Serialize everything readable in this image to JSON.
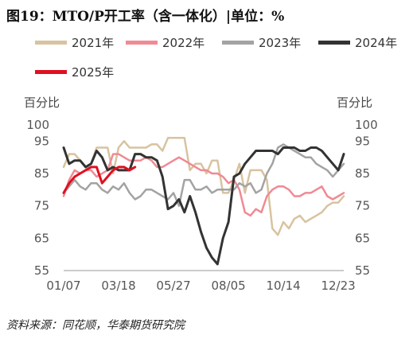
{
  "title": "图19：MTO/P开工率（含一体化）|单位：%",
  "source": "资料来源：同花顺，华泰期货研究院",
  "chart_data": {
    "type": "line",
    "ylabel_left": "百分比",
    "ylabel_right": "百分比",
    "ylim": [
      55,
      100
    ],
    "yticks": [
      55,
      65,
      75,
      85,
      95,
      100
    ],
    "xlim": [
      1,
      52
    ],
    "xticks": [
      {
        "week": 1,
        "label": "01/07"
      },
      {
        "week": 11,
        "label": "03/18"
      },
      {
        "week": 21,
        "label": "05/27"
      },
      {
        "week": 31,
        "label": "08/05"
      },
      {
        "week": 41,
        "label": "10/14"
      },
      {
        "week": 51,
        "label": "12/23"
      }
    ],
    "grid": false,
    "legend_position": "top",
    "series": [
      {
        "name": "2021年",
        "color": "#d8c3a0",
        "width": 2.5,
        "values": [
          87,
          91,
          91,
          89,
          87,
          88,
          93,
          93,
          93,
          85,
          93,
          95,
          93,
          93,
          93,
          93,
          94,
          94,
          92,
          96,
          96,
          96,
          96,
          86,
          88,
          88,
          85,
          89,
          89,
          79,
          79,
          83,
          88,
          79,
          86,
          86,
          86,
          83,
          68,
          66,
          70,
          68,
          71,
          72,
          70,
          71,
          72,
          73,
          75,
          76,
          76,
          78
        ]
      },
      {
        "name": "2022年",
        "color": "#f08a94",
        "width": 2.5,
        "values": [
          78,
          83,
          86,
          85,
          86,
          86,
          84,
          85,
          86,
          91,
          91,
          90,
          89,
          89,
          89,
          90,
          89,
          87,
          87,
          88,
          89,
          90,
          89,
          88,
          87,
          86,
          86,
          85,
          85,
          84,
          82,
          83,
          80,
          73,
          72,
          74,
          73,
          78,
          80,
          81,
          81,
          80,
          78,
          78,
          79,
          79,
          80,
          81,
          78,
          77,
          78,
          79
        ]
      },
      {
        "name": "2023年",
        "color": "#a3a3a3",
        "width": 2.5,
        "values": [
          79,
          81,
          83,
          81,
          80,
          82,
          82,
          80,
          79,
          81,
          80,
          82,
          79,
          77,
          78,
          80,
          80,
          79,
          78,
          77,
          79,
          75,
          83,
          83,
          80,
          80,
          81,
          79,
          80,
          80,
          80,
          80,
          82,
          81,
          82,
          79,
          80,
          85,
          88,
          93,
          94,
          93,
          92,
          91,
          90,
          90,
          88,
          87,
          86,
          84,
          86,
          88
        ]
      },
      {
        "name": "2024年",
        "color": "#333333",
        "width": 3,
        "values": [
          93,
          88,
          89,
          89,
          87,
          88,
          92,
          90,
          86,
          87,
          86,
          86,
          86,
          91,
          91,
          90,
          90,
          89,
          84,
          74,
          75,
          77,
          73,
          78,
          73,
          67,
          62,
          59,
          57,
          65,
          70,
          84,
          85,
          88,
          90,
          92,
          92,
          92,
          92,
          91,
          93,
          93,
          93,
          92,
          92,
          93,
          93,
          92,
          90,
          88,
          86,
          91
        ]
      },
      {
        "name": "2025年",
        "color": "#e01020",
        "width": 3,
        "values": [
          79,
          82,
          84,
          85,
          86,
          87,
          87,
          82,
          84,
          86,
          87,
          87,
          86,
          87
        ]
      }
    ]
  }
}
